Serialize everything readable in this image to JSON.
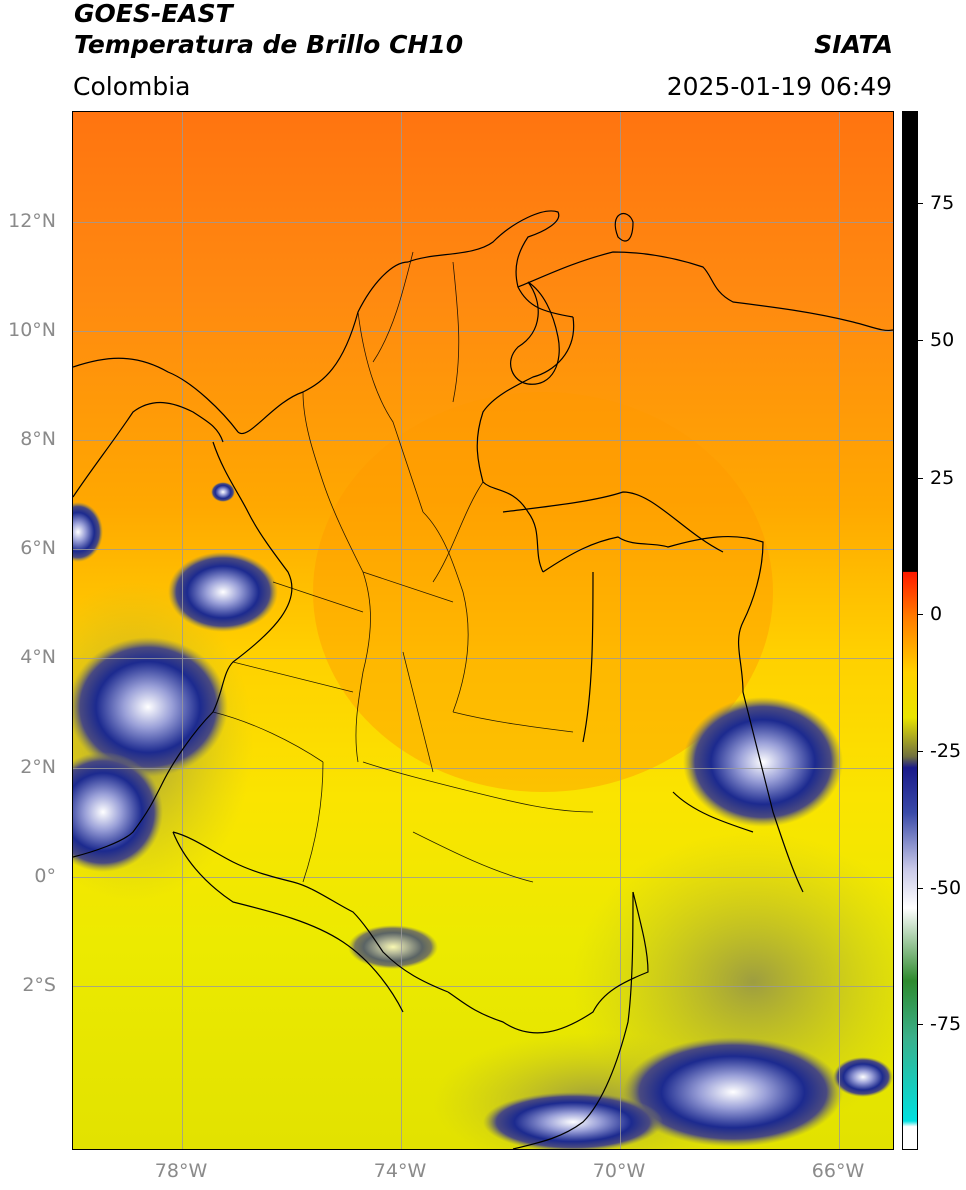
{
  "header": {
    "satellite": "GOES-EAST",
    "product": "Temperatura de Brillo CH10",
    "organization": "SIATA",
    "region": "Colombia",
    "datetime": "2025-01-19 06:49"
  },
  "map": {
    "lat_labels": [
      "12°N",
      "10°N",
      "8°N",
      "6°N",
      "4°N",
      "2°N",
      "0°",
      "2°S"
    ],
    "lon_labels": [
      "78°W",
      "74°W",
      "70°W",
      "66°W"
    ],
    "extent": {
      "lon_min": -80,
      "lon_max": -65,
      "lat_min": -5,
      "lat_max": 14
    },
    "gridlines": true
  },
  "colorbar": {
    "tick_labels": [
      "75",
      "50",
      "25",
      "0",
      "-25",
      "-50",
      "-75"
    ],
    "range": [
      -95,
      90
    ],
    "stops": [
      {
        "value": 90,
        "color": "#000000"
      },
      {
        "value": 8,
        "color": "#000000"
      },
      {
        "value": 7.9,
        "color": "#ff1a00"
      },
      {
        "value": 0,
        "color": "#ff7a00"
      },
      {
        "value": -10,
        "color": "#ffd200"
      },
      {
        "value": -18,
        "color": "#e8e400"
      },
      {
        "value": -25,
        "color": "#707040"
      },
      {
        "value": -27,
        "color": "#1a1a8a"
      },
      {
        "value": -35,
        "color": "#3a4aa8"
      },
      {
        "value": -45,
        "color": "#c8c8e8"
      },
      {
        "value": -52,
        "color": "#ffffff"
      },
      {
        "value": -65,
        "color": "#2e8a2e"
      },
      {
        "value": -75,
        "color": "#3ab08a"
      },
      {
        "value": -90,
        "color": "#00e0e0"
      },
      {
        "value": -91,
        "color": "#ffffff"
      },
      {
        "value": -95,
        "color": "#ffffff"
      }
    ]
  },
  "colors": {
    "warm_orange": "#ff7f10",
    "yellow": "#f2ea00",
    "cold_blue": "#1c2a8f",
    "grid": "#9a9a9a"
  }
}
